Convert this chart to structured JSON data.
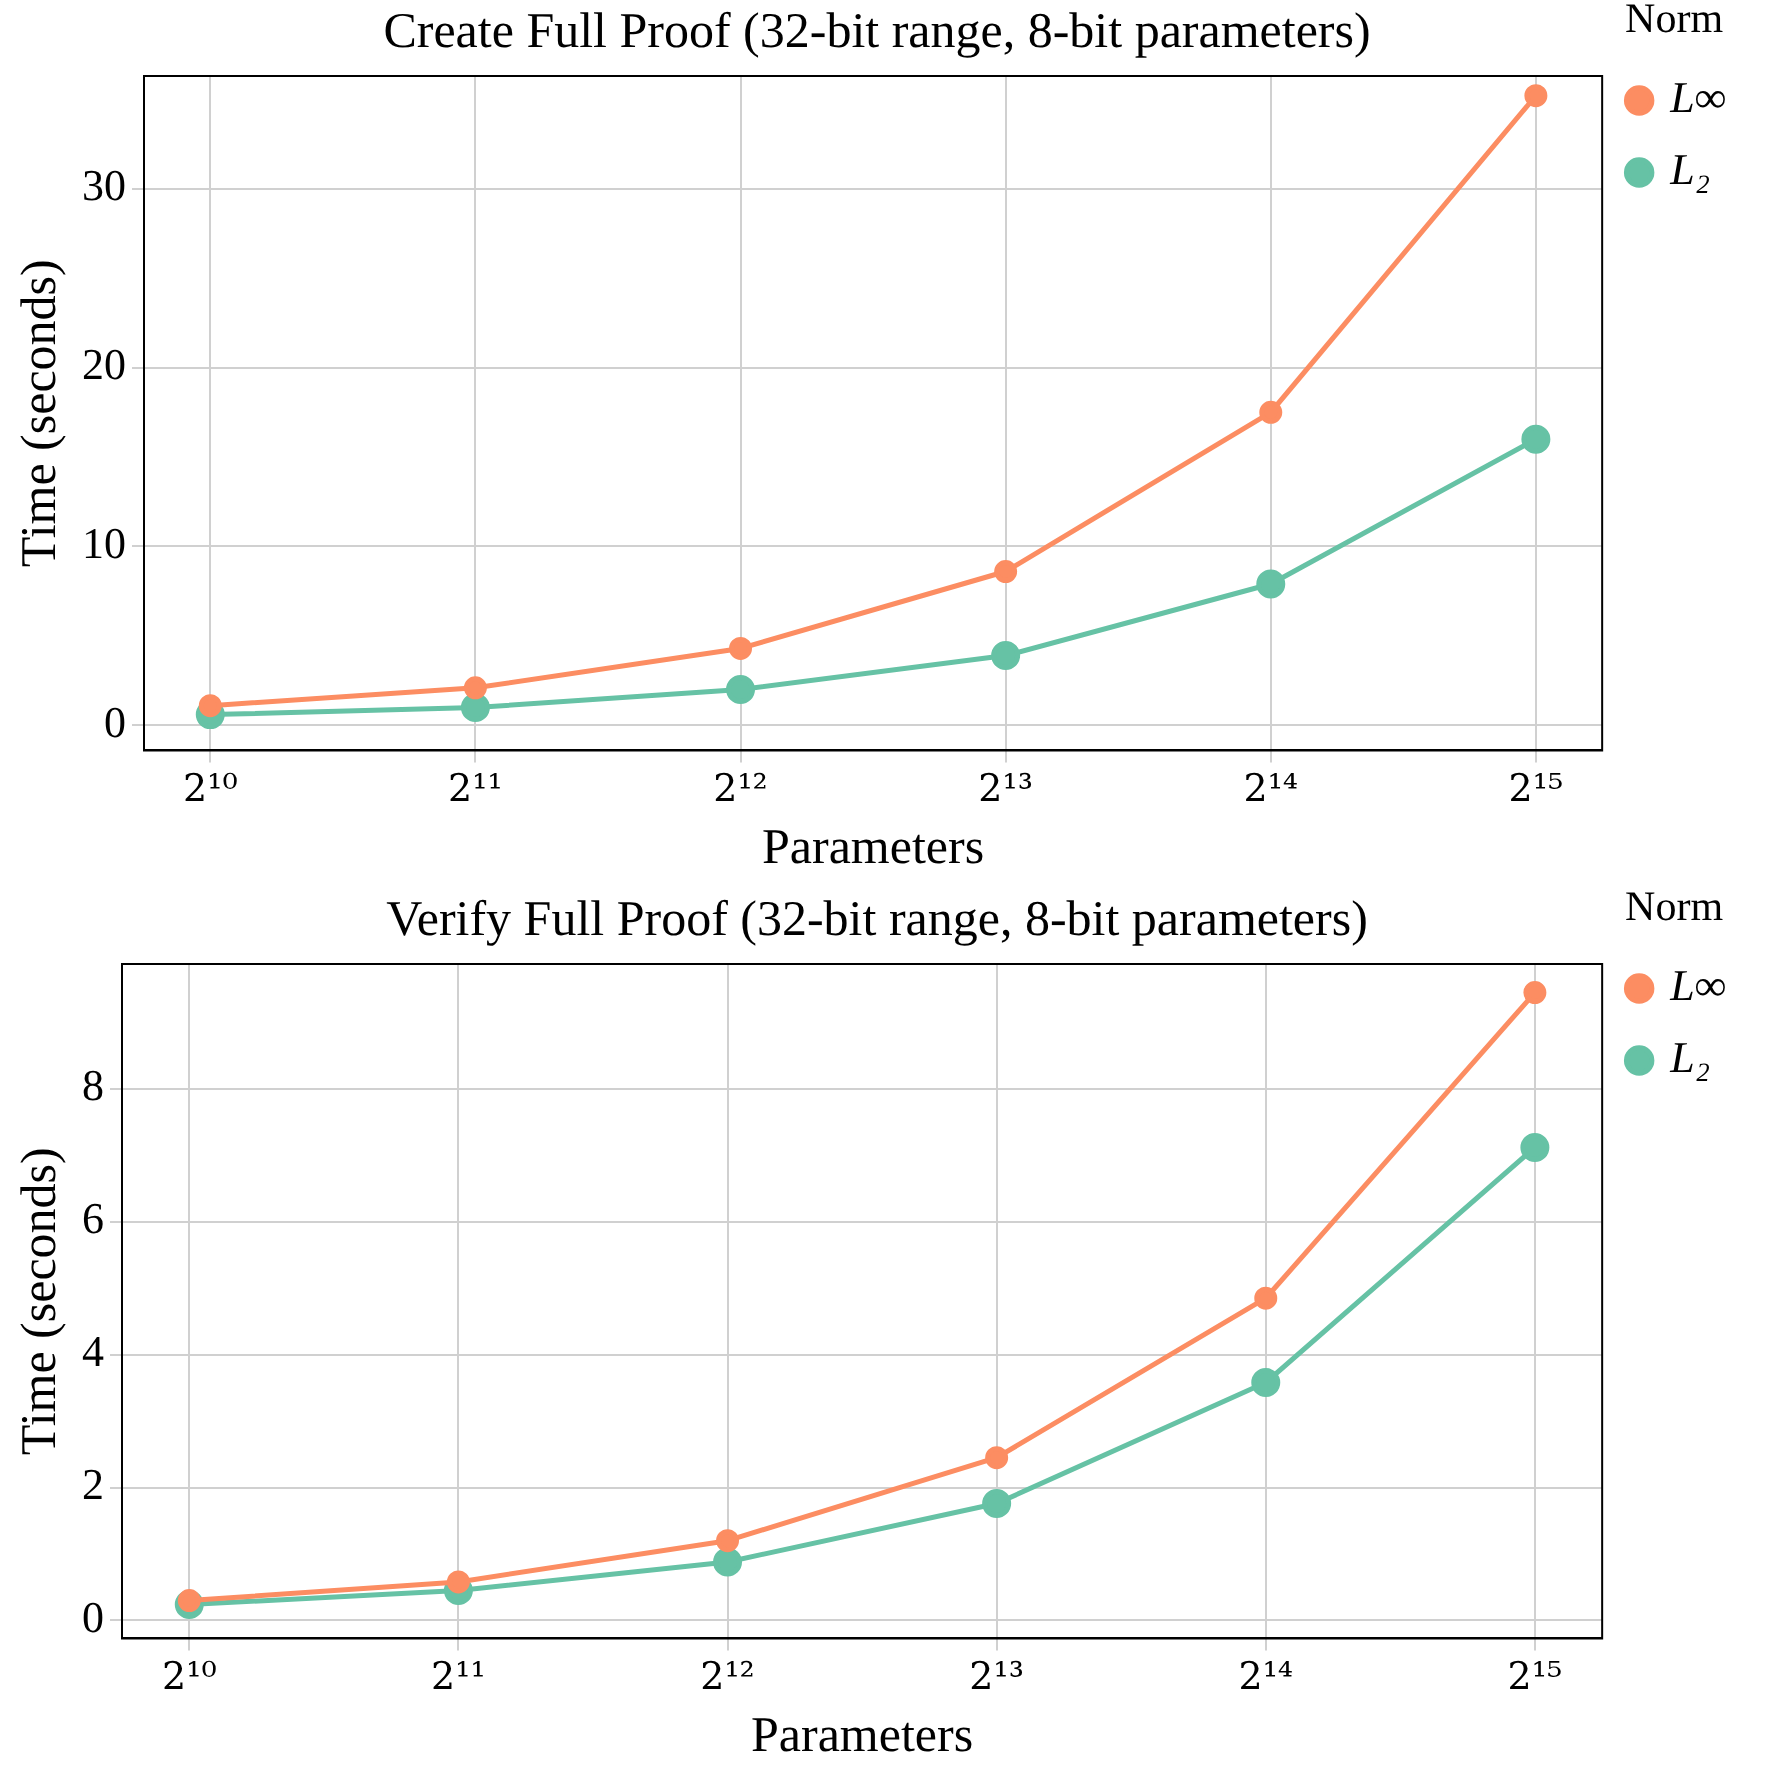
{
  "chart_data": [
    {
      "type": "line",
      "title": "Create Full Proof (32-bit range, 8-bit parameters)",
      "xlabel": "Parameters",
      "ylabel": "Time (seconds)",
      "legend_title": "Norm",
      "categories": [
        "2¹⁰",
        "2¹¹",
        "2¹²",
        "2¹³",
        "2¹⁴",
        "2¹⁵"
      ],
      "series": [
        {
          "name": "L∞",
          "color": "#fc8d62",
          "values": [
            1.1,
            2.1,
            4.3,
            8.6,
            17.5,
            35.2
          ]
        },
        {
          "name": "L₂",
          "color": "#66c2a5",
          "values": [
            0.6,
            1.0,
            2.0,
            3.9,
            7.9,
            16.0
          ]
        }
      ],
      "ylim": [
        -1.4,
        36.3
      ],
      "yticks": [
        0,
        10,
        20,
        30
      ],
      "grid": true,
      "legend": "top right",
      "marker": "circle",
      "line_style": "solid"
    },
    {
      "type": "line",
      "title": "Verify Full Proof (32-bit range, 8-bit parameters)",
      "xlabel": "Parameters",
      "ylabel": "Time (seconds)",
      "legend_title": "Norm",
      "categories": [
        "2¹⁰",
        "2¹¹",
        "2¹²",
        "2¹³",
        "2¹⁴",
        "2¹⁵"
      ],
      "series": [
        {
          "name": "L∞",
          "color": "#fc8d62",
          "values": [
            0.3,
            0.58,
            1.2,
            2.45,
            4.85,
            9.45
          ]
        },
        {
          "name": "L₂",
          "color": "#66c2a5",
          "values": [
            0.24,
            0.45,
            0.88,
            1.76,
            3.58,
            7.12
          ]
        }
      ],
      "ylim": [
        -0.27,
        9.88
      ],
      "yticks": [
        0,
        2,
        4,
        6,
        8
      ],
      "grid": true,
      "legend": "top right",
      "marker": "circle",
      "line_style": "solid"
    }
  ]
}
